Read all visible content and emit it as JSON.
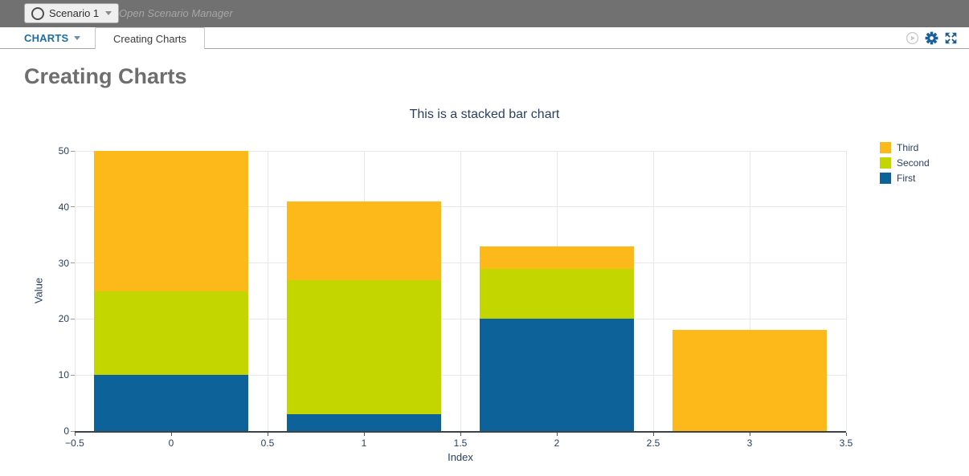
{
  "topbar": {
    "scenario_label": "Scenario 1",
    "open_manager_label": "Open Scenario Manager",
    "scenario_status_icon": "circle-outline-icon",
    "dropdown_icon": "chevron-down-icon"
  },
  "tabbar": {
    "menu_label": "CHARTS",
    "menu_dropdown_icon": "chevron-down-icon",
    "active_tab": "Creating Charts",
    "icons": [
      "play-circle-icon",
      "gear-icon",
      "expand-icon"
    ]
  },
  "page": {
    "title": "Creating Charts"
  },
  "colors": {
    "topbar_bg": "#717171",
    "nav_blue": "#1c6ea4",
    "icon_blue": "#1a5f96",
    "icon_disabled_gray": "#c9c9c9",
    "heading_gray": "#6e6e6e",
    "chart_text": "#2a3f5f",
    "gridline": "#e8e8e8",
    "axis_line": "#3b4248"
  },
  "chart_data": {
    "type": "bar",
    "stacked": true,
    "title": "This is a stacked bar chart",
    "xlabel": "Index",
    "ylabel": "Value",
    "x": [
      0,
      1,
      2,
      3
    ],
    "series": [
      {
        "name": "First",
        "color": "#0d6399",
        "values": [
          10,
          3,
          20,
          0
        ]
      },
      {
        "name": "Second",
        "color": "#c4d600",
        "values": [
          15,
          24,
          9,
          0
        ]
      },
      {
        "name": "Third",
        "color": "#fdb819",
        "values": [
          25,
          14,
          4,
          18
        ]
      }
    ],
    "stack_totals": [
      50,
      41,
      33,
      18
    ],
    "xlim": [
      -0.5,
      3.5
    ],
    "ylim": [
      0,
      50
    ],
    "x_ticks": [
      -0.5,
      0,
      0.5,
      1,
      1.5,
      2,
      2.5,
      3,
      3.5
    ],
    "x_tick_labels": [
      "−0.5",
      "0",
      "0.5",
      "1",
      "1.5",
      "2",
      "2.5",
      "3",
      "3.5"
    ],
    "y_ticks": [
      0,
      10,
      20,
      30,
      40,
      50
    ],
    "y_tick_labels": [
      "0",
      "10",
      "20",
      "30",
      "40",
      "50"
    ],
    "bar_width": 0.8,
    "grid": true,
    "legend_position": "top-right",
    "legend_order": [
      "Third",
      "Second",
      "First"
    ]
  }
}
